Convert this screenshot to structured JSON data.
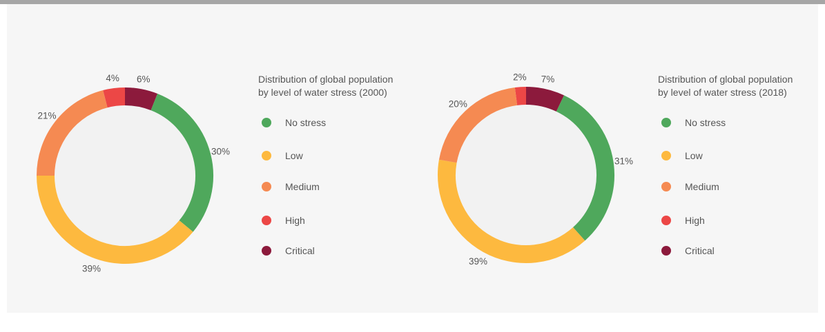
{
  "colors": {
    "No stress": "#4fa85c",
    "Low": "#fdb93f",
    "Medium": "#f58a52",
    "High": "#ec4746",
    "Critical": "#8c1a3c",
    "inner": "#f2f2f2"
  },
  "chart_data": [
    {
      "type": "pie",
      "title": "Distribution of global population\nby level of water stress (2000)",
      "categories": [
        "No stress",
        "Low",
        "Medium",
        "High",
        "Critical"
      ],
      "values": [
        30,
        39,
        21,
        4,
        6
      ],
      "labels": [
        "30%",
        "39%",
        "21%",
        "4%",
        "6%"
      ]
    },
    {
      "type": "pie",
      "title": "Distribution of global population\nby level of water stress (2018)",
      "categories": [
        "No stress",
        "Low",
        "Medium",
        "High",
        "Critical"
      ],
      "values": [
        31,
        39,
        20,
        2,
        7
      ],
      "labels": [
        "31%",
        "39%",
        "20%",
        "2%",
        "7%"
      ]
    }
  ]
}
